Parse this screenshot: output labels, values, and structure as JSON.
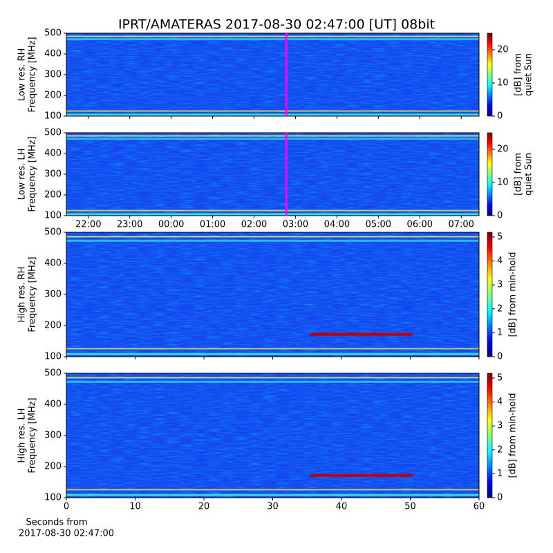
{
  "chart_data": [
    {
      "type": "heatmap",
      "title": "IPRT/AMATERAS 2017-08-30 02:47:00 [UT]   08bit",
      "ylabel": [
        "Low res. RH",
        "Frequency [MHz]"
      ],
      "ylim": [
        100,
        500
      ],
      "yticks": [
        100,
        200,
        300,
        400,
        500
      ],
      "xlim": [
        -2.53,
        7.43
      ],
      "marker_x": 2.78,
      "marker_color": "#ff00ff",
      "colormap": "jet",
      "clim": [
        0,
        25
      ],
      "cticks": [
        0,
        10,
        20
      ],
      "clabel": [
        "[dB] from",
        "quiet Sun"
      ]
    },
    {
      "type": "heatmap",
      "ylabel": [
        "Low res. LH",
        "Frequency [MHz]"
      ],
      "ylim": [
        100,
        500
      ],
      "yticks": [
        100,
        200,
        300,
        400,
        500
      ],
      "xlim": [
        -2.53,
        7.43
      ],
      "xticks": [
        {
          "value": -2,
          "label": "22:00"
        },
        {
          "value": -1,
          "label": "23:00"
        },
        {
          "value": 0,
          "label": "00:00"
        },
        {
          "value": 1,
          "label": "01:00"
        },
        {
          "value": 2,
          "label": "02:00"
        },
        {
          "value": 3,
          "label": "03:00"
        },
        {
          "value": 4,
          "label": "04:00"
        },
        {
          "value": 5,
          "label": "05:00"
        },
        {
          "value": 6,
          "label": "06:00"
        },
        {
          "value": 7,
          "label": "07:00"
        }
      ],
      "marker_x": 2.78,
      "marker_color": "#ff00ff",
      "colormap": "jet",
      "clim": [
        0,
        25
      ],
      "cticks": [
        0,
        10,
        20
      ],
      "clabel": [
        "[dB] from",
        "quiet Sun"
      ]
    },
    {
      "type": "heatmap",
      "ylabel": [
        "High res. RH",
        "Frequency [MHz]"
      ],
      "ylim": [
        100,
        500
      ],
      "yticks": [
        100,
        200,
        300,
        400,
        500
      ],
      "xlim": [
        0,
        60
      ],
      "colormap": "jet",
      "clim": [
        0,
        5.2
      ],
      "cticks": [
        0,
        1,
        2,
        3,
        4,
        5
      ],
      "clabel": [
        "[dB] from min-hold"
      ]
    },
    {
      "type": "heatmap",
      "ylabel": [
        "High res. LH",
        "Frequency [MHz]"
      ],
      "ylim": [
        100,
        500
      ],
      "yticks": [
        100,
        200,
        300,
        400,
        500
      ],
      "xlim": [
        0,
        60
      ],
      "xticks": [
        0,
        10,
        20,
        30,
        40,
        50,
        60
      ],
      "xlabel": [
        "Seconds from",
        "2017-08-30 02:47:00"
      ],
      "colormap": "jet",
      "clim": [
        0,
        5.2
      ],
      "cticks": [
        0,
        1,
        2,
        3,
        4,
        5
      ],
      "clabel": [
        "[dB] from min-hold"
      ]
    }
  ]
}
